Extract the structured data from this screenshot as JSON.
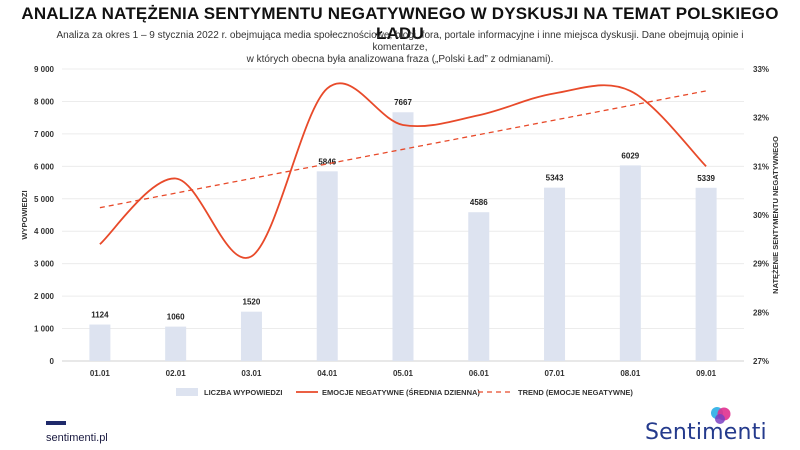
{
  "header": {
    "title": "ANALIZA NATĘŻENIA SENTYMENTU NEGATYWNEGO W DYSKUSJI NA TEMAT POLSKIEGO ŁADU",
    "subtitle_line1": "Analiza za okres 1 – 9 stycznia 2022 r. obejmująca media społecznościowe, blogi, fora, portale informacyjne i inne miejsca dyskusji. Dane obejmują opinie i komentarze,",
    "subtitle_line2": "w których obecna była analizowana fraza („Polski Ład” z odmianami)."
  },
  "footer": {
    "url": "sentimenti.pl",
    "brand": "Sentimenti"
  },
  "colors": {
    "bar": "#dde3f0",
    "line": "#e84a2a",
    "trend": "#e84a2a",
    "brand": "#243a8c"
  },
  "chart_data": {
    "type": "bar",
    "categories": [
      "01.01",
      "02.01",
      "03.01",
      "04.01",
      "05.01",
      "06.01",
      "07.01",
      "08.01",
      "09.01"
    ],
    "ylabel": "WYPOWIEDZI",
    "y2label": "NATĘŻENIE SENTYMENTU NEGATYWNEGO",
    "ylim": [
      0,
      9000
    ],
    "yticks": [
      "0",
      "1 000",
      "2 000",
      "3 000",
      "4 000",
      "5 000",
      "6 000",
      "7 000",
      "8 000",
      "9 000"
    ],
    "y2lim": [
      27,
      33
    ],
    "y2ticks": [
      "27%",
      "28%",
      "29%",
      "30%",
      "31%",
      "32%",
      "33%"
    ],
    "grid": true,
    "legend_position": "bottom",
    "series": [
      {
        "name": "LICZBA WYPOWIEDZI",
        "type": "bar",
        "axis": "left",
        "values": [
          1124,
          1060,
          1520,
          5846,
          7667,
          4586,
          5343,
          6029,
          5339
        ],
        "labels": [
          "1124",
          "1060",
          "1520",
          "5846",
          "7667",
          "4586",
          "5343",
          "6029",
          "5339"
        ]
      },
      {
        "name": "EMOCJE NEGATYWNE (ŚREDNIA DZIENNA)",
        "type": "line",
        "axis": "right",
        "values": [
          29.4,
          30.75,
          29.15,
          32.6,
          31.85,
          32.05,
          32.5,
          32.55,
          31.0
        ]
      },
      {
        "name": "TREND (EMOCJE NEGATYWNE)",
        "type": "trend",
        "axis": "right",
        "values": [
          30.15,
          30.45,
          30.75,
          31.05,
          31.35,
          31.65,
          31.95,
          32.25,
          32.55
        ]
      }
    ]
  }
}
